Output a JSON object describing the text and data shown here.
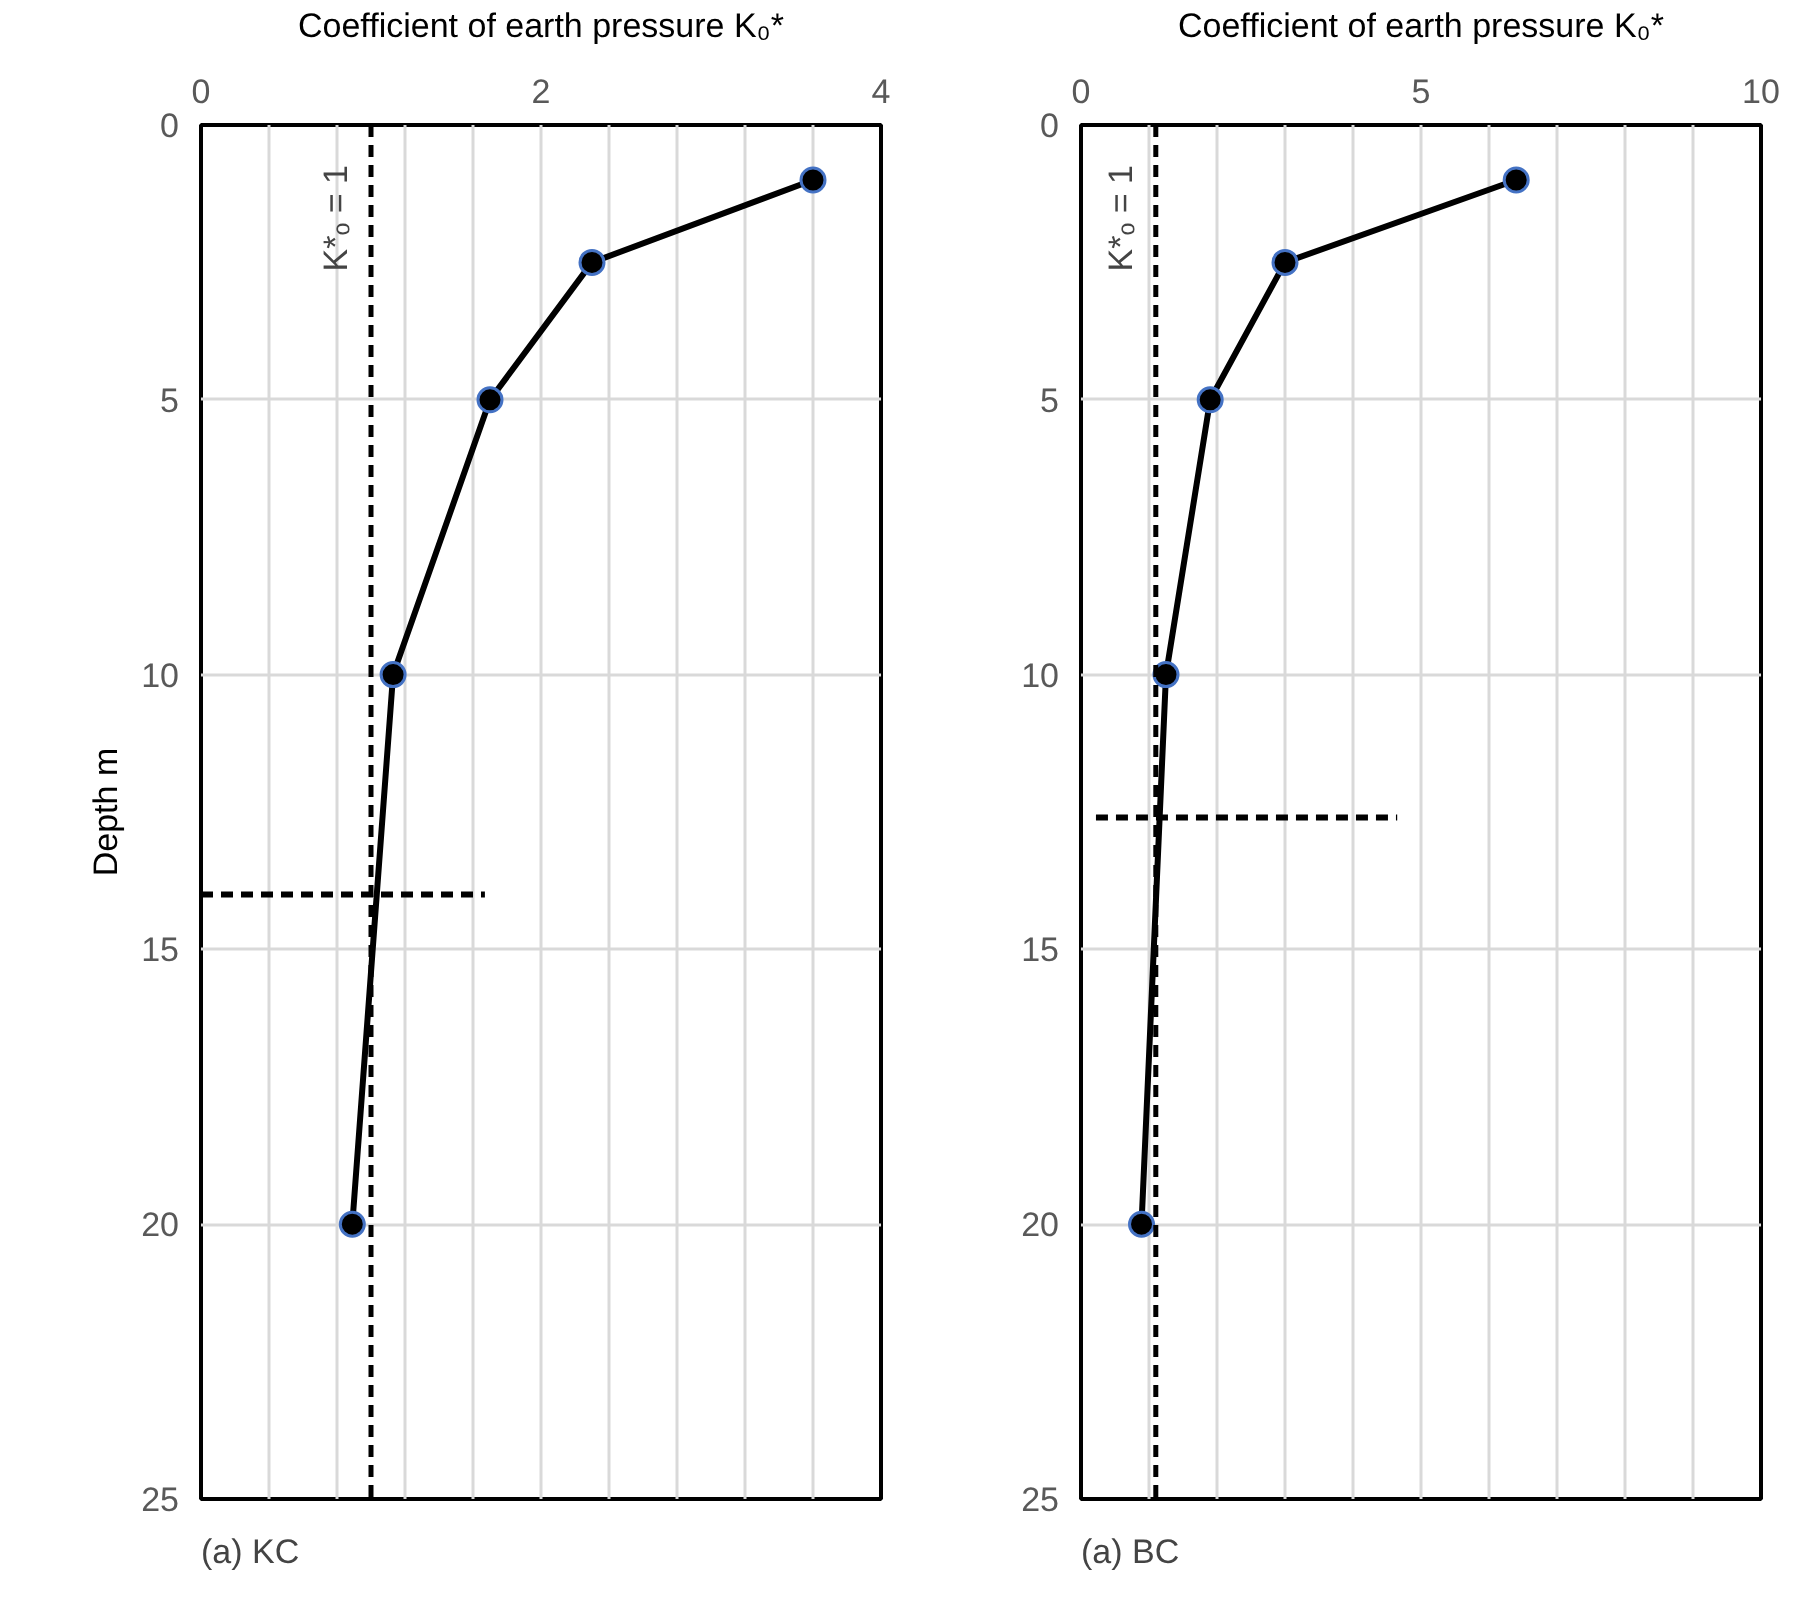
{
  "chart_data": [
    {
      "type": "line",
      "xlabel": "Coefficient of earth pressure K₀*",
      "ylabel": "Depth m",
      "xlim": [
        0,
        4
      ],
      "xticks": [
        0,
        {
          "value": 0.4,
          "label": null
        },
        {
          "value": 0.8,
          "label": null
        },
        {
          "value": 1.2,
          "label": null
        },
        {
          "value": 1.6,
          "label": null
        },
        2,
        {
          "value": 2.4,
          "label": null
        },
        {
          "value": 2.8,
          "label": null
        },
        {
          "value": 3.2,
          "label": null
        },
        {
          "value": 3.6,
          "label": null
        },
        4
      ],
      "ylim": [
        25,
        0
      ],
      "yticks": [
        0,
        5,
        10,
        15,
        20,
        25
      ],
      "grid": true,
      "series": [
        {
          "color": "#000000",
          "x": [
            3.6,
            2.3,
            1.7,
            1.13,
            0.89
          ],
          "values": [
            1,
            2.5,
            5,
            10,
            20
          ],
          "marker": "circle",
          "line_style": "solid"
        },
        {
          "color": "#000000",
          "x": [
            0,
            1.67
          ],
          "values": [
            14,
            14
          ],
          "marker": "none",
          "line_style": "dashed"
        }
      ],
      "ref_lines": [
        {
          "axis": "x",
          "value": 1,
          "label": "K*ₒ = 1",
          "line_style": "dashed",
          "color": "#000000"
        }
      ],
      "annotations": [
        "(a) KC"
      ]
    },
    {
      "type": "line",
      "xlabel": "Coefficient of earth pressure K₀*",
      "xlim": [
        0,
        10
      ],
      "xticks": [
        0,
        {
          "value": 1,
          "label": null
        },
        {
          "value": 2,
          "label": null
        },
        {
          "value": 3,
          "label": null
        },
        {
          "value": 4,
          "label": null
        },
        5,
        {
          "value": 6,
          "label": null
        },
        {
          "value": 7,
          "label": null
        },
        {
          "value": 8,
          "label": null
        },
        {
          "value": 9,
          "label": null
        },
        10
      ],
      "ylim": [
        25,
        0
      ],
      "yticks": [
        0,
        5,
        10,
        15,
        20,
        25
      ],
      "grid": true,
      "series": [
        {
          "color": "#000000",
          "x": [
            6.4,
            3.0,
            1.9,
            1.25,
            0.89
          ],
          "values": [
            1,
            2.5,
            5,
            10,
            20
          ],
          "marker": "circle",
          "line_style": "solid"
        },
        {
          "color": "#000000",
          "x": [
            0.22,
            4.65
          ],
          "values": [
            12.6,
            12.6
          ],
          "marker": "none",
          "line_style": "dashed"
        }
      ],
      "ref_lines": [
        {
          "axis": "x",
          "value": 1.1,
          "label": "K*ₒ = 1",
          "line_style": "dashed",
          "color": "#000000"
        }
      ],
      "annotations": [
        "(a) BC"
      ]
    }
  ]
}
